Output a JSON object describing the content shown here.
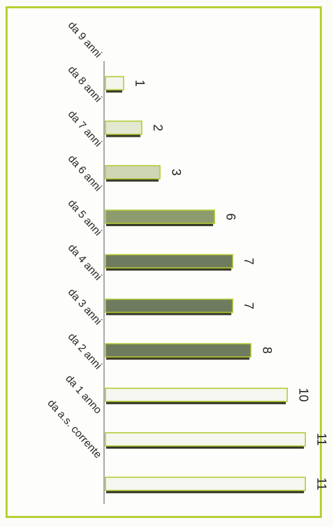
{
  "chart_data": {
    "type": "bar",
    "orientation": "horizontal",
    "title": "",
    "xlabel": "",
    "ylabel": "",
    "categories": [
      "da 9 anni",
      "da 8 anni",
      "da 7 anni",
      "da 6 anni",
      "da 5 anni",
      "da 4 anni",
      "da 3 anni",
      "da 2 anni",
      "da 1 anno",
      "da a.s. corrente"
    ],
    "values": [
      1,
      2,
      3,
      6,
      7,
      7,
      8,
      10,
      11,
      11
    ],
    "value_labels": [
      "1",
      "2",
      "3",
      "6",
      "7",
      "7",
      "8",
      "10",
      "11",
      "11"
    ],
    "xlim": [
      0,
      11
    ],
    "grid": false,
    "legend": "none",
    "bar_colors": [
      "#f4f5ec",
      "#e3e8d0",
      "#cfd6b6",
      "#8e9b6e",
      "#6f7b5f",
      "#6f7b5f",
      "#6f7b5f",
      "#f5f6ef",
      "#f5f6ef",
      "#f5f6ef"
    ],
    "bar_edge": "#b4cb34",
    "bar_shadow": "#3a3a2a",
    "axis_color": "#8c8c8c",
    "frame_color": "#b9cf33"
  }
}
